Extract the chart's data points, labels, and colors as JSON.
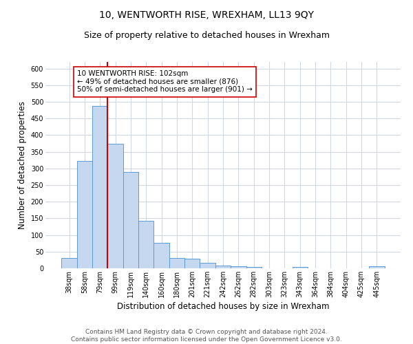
{
  "title": "10, WENTWORTH RISE, WREXHAM, LL13 9QY",
  "subtitle": "Size of property relative to detached houses in Wrexham",
  "xlabel": "Distribution of detached houses by size in Wrexham",
  "ylabel": "Number of detached properties",
  "categories": [
    "38sqm",
    "58sqm",
    "79sqm",
    "99sqm",
    "119sqm",
    "140sqm",
    "160sqm",
    "180sqm",
    "201sqm",
    "221sqm",
    "242sqm",
    "262sqm",
    "282sqm",
    "303sqm",
    "323sqm",
    "343sqm",
    "364sqm",
    "384sqm",
    "404sqm",
    "425sqm",
    "445sqm"
  ],
  "values": [
    32,
    323,
    487,
    375,
    290,
    142,
    76,
    32,
    29,
    16,
    8,
    6,
    5,
    0,
    0,
    5,
    0,
    0,
    0,
    0,
    6
  ],
  "bar_color": "#c5d8f0",
  "bar_edge_color": "#5b9bd5",
  "vline_x_index": 3,
  "vline_color": "#cc0000",
  "annotation_text": "10 WENTWORTH RISE: 102sqm\n← 49% of detached houses are smaller (876)\n50% of semi-detached houses are larger (901) →",
  "annotation_box_color": "#ffffff",
  "annotation_box_edge": "#cc0000",
  "footer": "Contains HM Land Registry data © Crown copyright and database right 2024.\nContains public sector information licensed under the Open Government Licence v3.0.",
  "ylim": [
    0,
    620
  ],
  "yticks": [
    0,
    50,
    100,
    150,
    200,
    250,
    300,
    350,
    400,
    450,
    500,
    550,
    600
  ],
  "bg_color": "#ffffff",
  "grid_color": "#d0d8e8",
  "title_fontsize": 10,
  "subtitle_fontsize": 9,
  "axis_label_fontsize": 8.5,
  "tick_fontsize": 7,
  "footer_fontsize": 6.5,
  "annotation_fontsize": 7.5
}
